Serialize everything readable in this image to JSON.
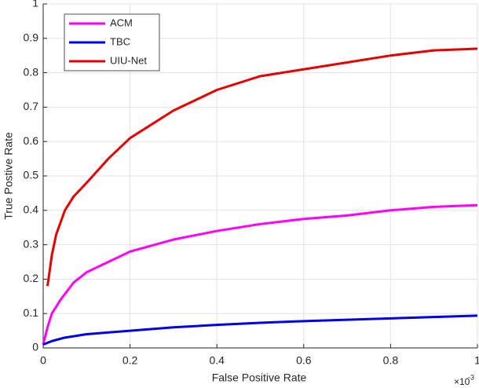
{
  "chart_data": {
    "type": "line",
    "xlabel": "False Positive Rate",
    "ylabel": "True Postive Rate",
    "x_multiplier": {
      "base": "×10",
      "exponent": "-3"
    },
    "xlim": [
      0,
      1
    ],
    "ylim": [
      0,
      1
    ],
    "xticks": [
      0,
      0.2,
      0.4,
      0.6,
      0.8,
      1
    ],
    "yticks": [
      0,
      0.1,
      0.2,
      0.3,
      0.4,
      0.5,
      0.6,
      0.7,
      0.8,
      0.9,
      1
    ],
    "grid": true,
    "legend": "upper left",
    "series": [
      {
        "name": "ACM",
        "color": "#ff00ff",
        "x": [
          0,
          0.01,
          0.02,
          0.04,
          0.07,
          0.1,
          0.15,
          0.2,
          0.3,
          0.4,
          0.5,
          0.6,
          0.7,
          0.8,
          0.9,
          1
        ],
        "values": [
          0.01,
          0.06,
          0.1,
          0.14,
          0.19,
          0.22,
          0.25,
          0.28,
          0.315,
          0.34,
          0.36,
          0.375,
          0.385,
          0.4,
          0.41,
          0.415
        ]
      },
      {
        "name": "TBC",
        "color": "#0000ee",
        "x": [
          0,
          0.02,
          0.05,
          0.1,
          0.2,
          0.3,
          0.4,
          0.5,
          0.6,
          0.7,
          0.8,
          0.9,
          1
        ],
        "values": [
          0.01,
          0.02,
          0.03,
          0.04,
          0.05,
          0.06,
          0.067,
          0.073,
          0.078,
          0.082,
          0.086,
          0.09,
          0.094
        ]
      },
      {
        "name": "UIU-Net",
        "color": "#e50000",
        "x": [
          0.01,
          0.02,
          0.03,
          0.05,
          0.07,
          0.1,
          0.15,
          0.2,
          0.25,
          0.3,
          0.35,
          0.4,
          0.5,
          0.6,
          0.7,
          0.8,
          0.9,
          1
        ],
        "values": [
          0.18,
          0.27,
          0.33,
          0.4,
          0.44,
          0.48,
          0.55,
          0.61,
          0.65,
          0.69,
          0.72,
          0.75,
          0.79,
          0.81,
          0.83,
          0.85,
          0.865,
          0.87
        ]
      }
    ]
  }
}
